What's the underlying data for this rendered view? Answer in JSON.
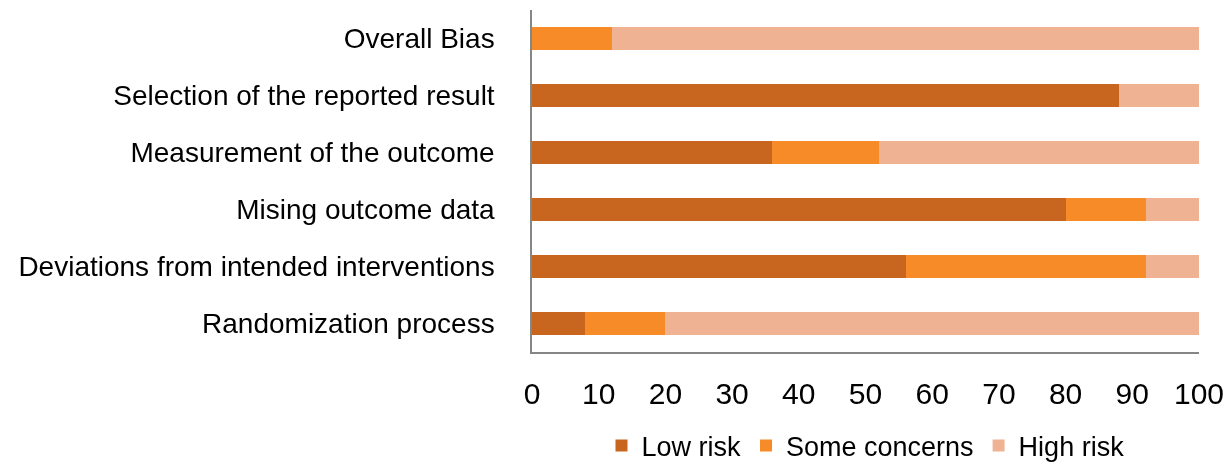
{
  "chart_data": {
    "type": "bar",
    "orientation": "horizontal",
    "stacked": true,
    "categories": [
      "Overall Bias",
      "Selection of the reported result",
      "Measurement of the outcome",
      "Mising outcome data",
      "Deviations from intended interventions",
      "Randomization process"
    ],
    "series": [
      {
        "name": "Low risk",
        "color": "#c8661f",
        "values": [
          0,
          88,
          36,
          80,
          56,
          8
        ]
      },
      {
        "name": "Some concerns",
        "color": "#f68b27",
        "values": [
          12,
          0,
          16,
          12,
          36,
          12
        ]
      },
      {
        "name": "High risk",
        "color": "#efb394",
        "values": [
          88,
          12,
          48,
          8,
          8,
          80
        ]
      }
    ],
    "xlim": [
      0,
      100
    ],
    "xticks": [
      0,
      10,
      20,
      30,
      40,
      50,
      60,
      70,
      80,
      90,
      100
    ],
    "legend": "bottom"
  }
}
